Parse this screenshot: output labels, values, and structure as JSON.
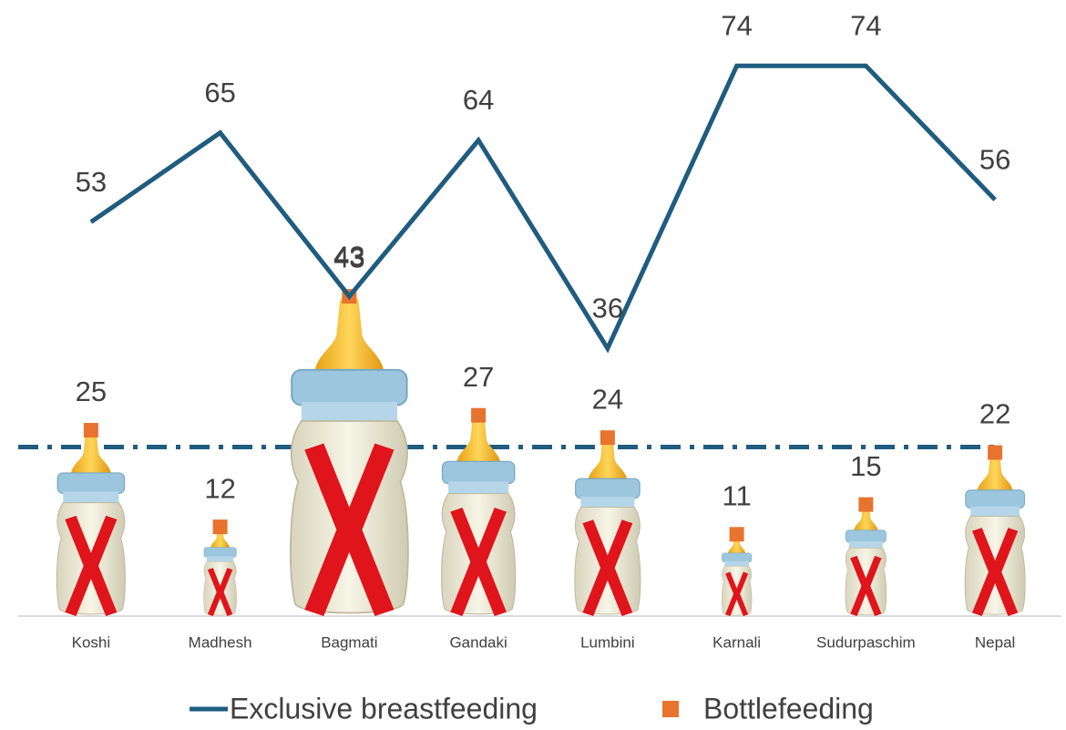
{
  "chart_data": {
    "type": "line",
    "categories": [
      "Koshi",
      "Madhesh",
      "Bagmati",
      "Gandaki",
      "Lumbini",
      "Karnali",
      "Sudurpaschim",
      "Nepal"
    ],
    "series": [
      {
        "name": "Exclusive breastfeeding",
        "color": "#1f5c7f",
        "values": [
          53,
          65,
          43,
          64,
          36,
          74,
          74,
          56
        ]
      },
      {
        "name": "Bottlefeeding",
        "color": "#e8732f",
        "values": [
          25,
          12,
          43,
          27,
          24,
          11,
          15,
          22
        ]
      }
    ],
    "ylim": [
      0,
      82
    ]
  }
}
